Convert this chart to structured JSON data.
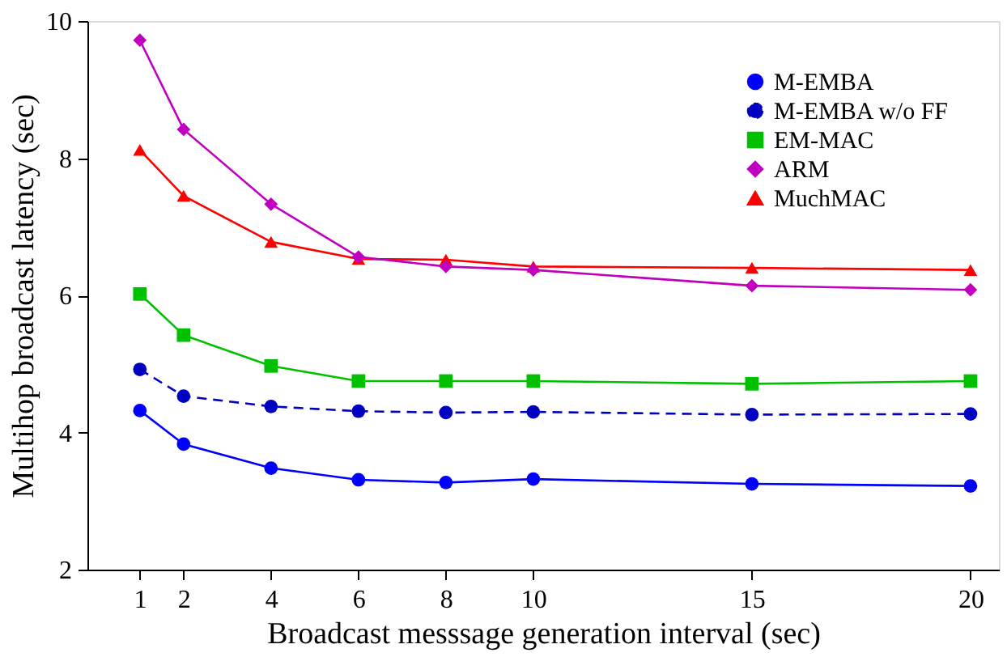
{
  "chart_data": {
    "type": "line",
    "xlabel": "Broadcast messsage generation interval (sec)",
    "ylabel": "Multihop broadcast latency (sec)",
    "x": [
      1,
      2,
      4,
      6,
      8,
      10,
      15,
      20
    ],
    "xlim": [
      -0.2,
      20.65
    ],
    "xticks": [
      1,
      2,
      4,
      6,
      8,
      10,
      15,
      20
    ],
    "ylim": [
      2,
      10
    ],
    "yticks": [
      2,
      4,
      6,
      8,
      10
    ],
    "grid": false,
    "legend": "top right",
    "series": [
      {
        "name": "M-EMBA",
        "color": "#0000ff",
        "marker": "circle",
        "line_style": "solid",
        "values": [
          4.32,
          3.83,
          3.48,
          3.31,
          3.27,
          3.32,
          3.25,
          3.22
        ]
      },
      {
        "name": "M-EMBA w/o FF",
        "color": "#0000c0",
        "marker": "circle",
        "line_style": "dashed",
        "values": [
          4.92,
          4.53,
          4.38,
          4.31,
          4.29,
          4.3,
          4.26,
          4.27
        ]
      },
      {
        "name": "EM-MAC",
        "color": "#00c000",
        "marker": "square",
        "line_style": "solid",
        "values": [
          6.02,
          5.42,
          4.97,
          4.75,
          4.75,
          4.75,
          4.71,
          4.75
        ]
      },
      {
        "name": "ARM",
        "color": "#c000c0",
        "marker": "diamond",
        "line_style": "solid",
        "values": [
          9.72,
          8.42,
          7.33,
          6.56,
          6.42,
          6.37,
          6.14,
          6.08
        ]
      },
      {
        "name": "MuchMAC",
        "color": "#ff0000",
        "marker": "triangle",
        "line_style": "solid",
        "values": [
          8.12,
          7.45,
          6.78,
          6.53,
          6.52,
          6.42,
          6.4,
          6.37
        ]
      }
    ]
  }
}
